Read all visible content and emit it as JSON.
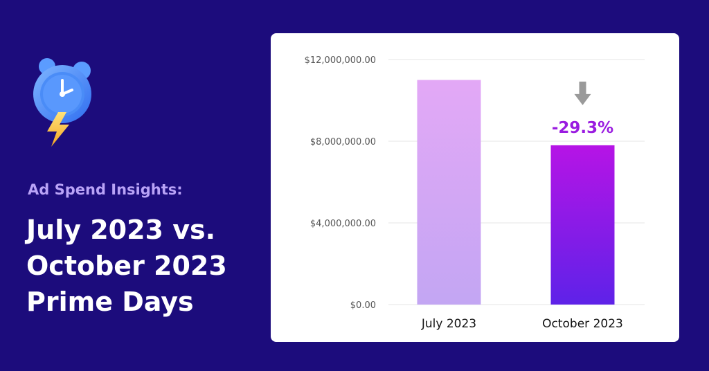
{
  "header": {
    "subtitle": "Ad Spend Insights:",
    "title_lines": [
      "July 2023 vs.",
      "October 2023",
      "Prime Days"
    ]
  },
  "icons": {
    "hero": "alarm-clock-lightning-icon",
    "change": "arrow-down-icon"
  },
  "colors": {
    "background": "#1c0c7c",
    "accent": "#b9a3f7",
    "july_bar_top": "#e3a8f6",
    "july_bar_bottom": "#c3a6f3",
    "october_bar_top": "#b614e6",
    "october_bar_bottom": "#5e22e8",
    "change_label": "#9a1ce0"
  },
  "chart_data": {
    "type": "bar",
    "categories": [
      "July 2023",
      "October 2023"
    ],
    "values": [
      11000000,
      7800000
    ],
    "ylim": [
      0,
      12000000
    ],
    "yticks": [
      {
        "value": 0,
        "label": "$0.00"
      },
      {
        "value": 4000000,
        "label": "$4,000,000.00"
      },
      {
        "value": 8000000,
        "label": "$8,000,000.00"
      },
      {
        "value": 12000000,
        "label": "$12,000,000.00"
      }
    ],
    "annotation": {
      "category": "October 2023",
      "text": "-29.3%"
    },
    "grid": true,
    "xlabel": "",
    "ylabel": ""
  }
}
